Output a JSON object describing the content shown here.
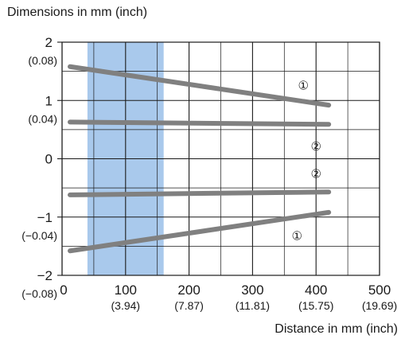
{
  "chart_data": {
    "type": "line",
    "title": "",
    "ylabel": "Dimensions in mm (inch)",
    "xlabel": "Distance in mm (inch)",
    "xlim": [
      0,
      500
    ],
    "ylim": [
      -2,
      2
    ],
    "grid": true,
    "x_ticks": [
      {
        "value": 0,
        "label": "0",
        "sublabel": ""
      },
      {
        "value": 100,
        "label": "100",
        "sublabel": "(3.94)"
      },
      {
        "value": 200,
        "label": "200",
        "sublabel": "(7.87)"
      },
      {
        "value": 300,
        "label": "300",
        "sublabel": "(11.81)"
      },
      {
        "value": 400,
        "label": "400",
        "sublabel": "(15.75)"
      },
      {
        "value": 500,
        "label": "500",
        "sublabel": "(19.69)"
      }
    ],
    "y_ticks": [
      {
        "value": 2,
        "label": "2",
        "sublabel": "(0.08)"
      },
      {
        "value": 1,
        "label": "1",
        "sublabel": "(0.04)"
      },
      {
        "value": 0,
        "label": "0",
        "sublabel": ""
      },
      {
        "value": -1,
        "label": "−1",
        "sublabel": "(−0.04)"
      },
      {
        "value": -2,
        "label": "−2",
        "sublabel": "(−0.08)"
      }
    ],
    "highlight_band": {
      "x_from": 40,
      "x_to": 160,
      "color": "#a9c9ec"
    },
    "series": [
      {
        "marker": "①",
        "points": [
          [
            0,
            1.58
          ],
          [
            420,
            0.92
          ]
        ],
        "marker_at": [
          380,
          1.28
        ]
      },
      {
        "marker": "②",
        "points": [
          [
            0,
            0.63
          ],
          [
            420,
            0.59
          ]
        ],
        "marker_at": [
          400,
          0.24
        ]
      },
      {
        "marker": "②",
        "points": [
          [
            0,
            -0.62
          ],
          [
            420,
            -0.57
          ]
        ],
        "marker_at": [
          400,
          -0.23
        ]
      },
      {
        "marker": "①",
        "points": [
          [
            0,
            -1.58
          ],
          [
            420,
            -0.92
          ]
        ],
        "marker_at": [
          370,
          -1.3
        ]
      }
    ],
    "line_color": "#808080",
    "grid_color": "#1a1a1a"
  }
}
